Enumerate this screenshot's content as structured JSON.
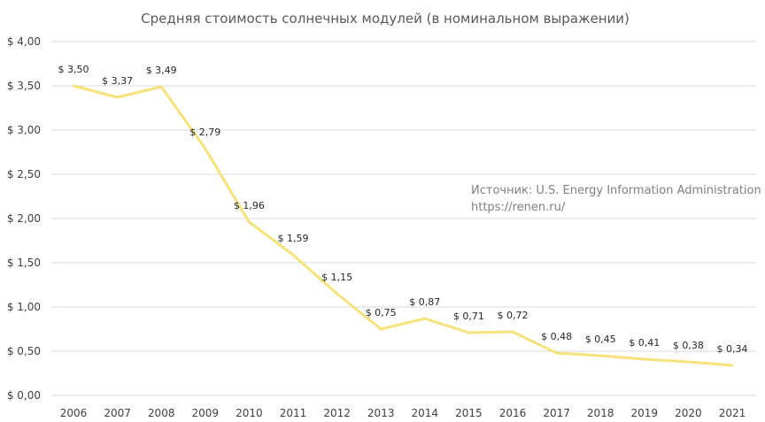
{
  "chart_data": {
    "type": "line",
    "title": "Средняя стоимость солнечных модулей (в номинальном выражении)",
    "xlabel": "",
    "ylabel": "",
    "categories": [
      "2006",
      "2007",
      "2008",
      "2009",
      "2010",
      "2011",
      "2012",
      "2013",
      "2014",
      "2015",
      "2016",
      "2017",
      "2018",
      "2019",
      "2020",
      "2021"
    ],
    "series": [
      {
        "values": [
          3.5,
          3.37,
          3.49,
          2.79,
          1.96,
          1.59,
          1.15,
          0.75,
          0.87,
          0.71,
          0.72,
          0.48,
          0.45,
          0.41,
          0.38,
          0.34
        ]
      }
    ],
    "data_labels": [
      "$ 3,50",
      "$ 3,37",
      "$ 3,49",
      "$ 2,79",
      "$ 1,96",
      "$ 1,59",
      "$ 1,15",
      "$ 0,75",
      "$ 0,87",
      "$ 0,71",
      "$ 0,72",
      "$ 0,48",
      "$ 0,45",
      "$ 0,41",
      "$ 0,38",
      "$ 0,34"
    ],
    "yticks": [
      0,
      0.5,
      1,
      1.5,
      2,
      2.5,
      3,
      3.5,
      4
    ],
    "ytick_labels": [
      "$ 0,00",
      "$ 0,50",
      "$ 1,00",
      "$ 1,50",
      "$ 2,00",
      "$ 2,50",
      "$ 3,00",
      "$ 3,50",
      "$ 4,00"
    ],
    "ylim": [
      0,
      4
    ],
    "grid": true,
    "legend": "none",
    "color": "#f6e27a"
  },
  "annotation": {
    "source_line": "Источник: U.S. Energy Information Administration",
    "url_line": "https://renen.ru/"
  }
}
